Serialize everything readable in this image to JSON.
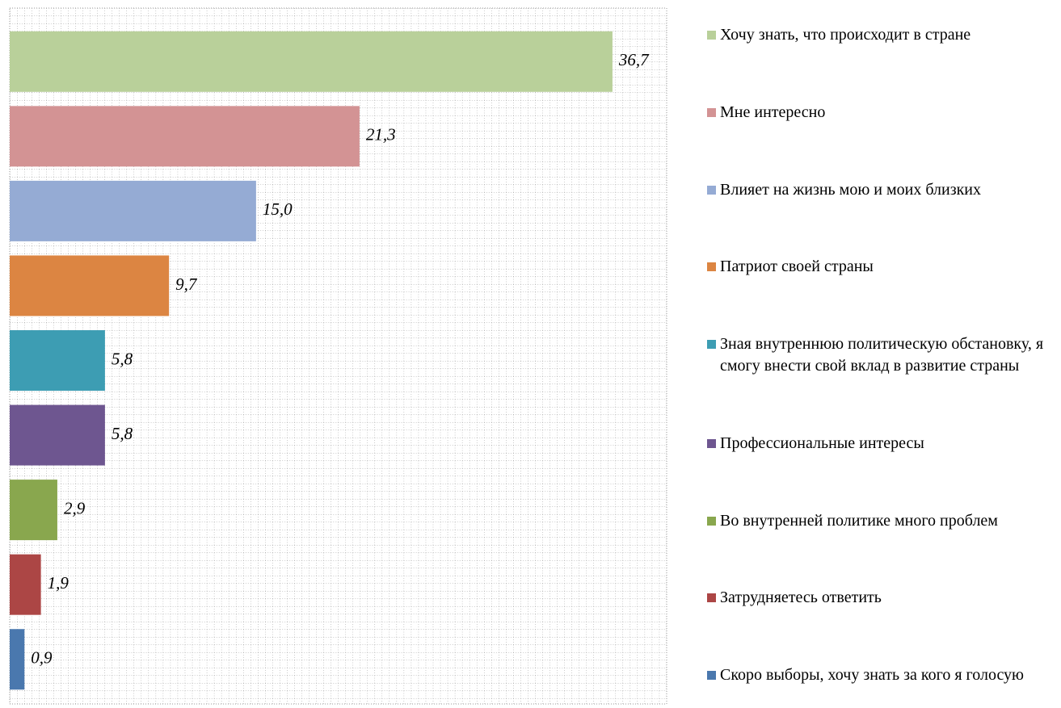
{
  "chart_data": {
    "type": "bar",
    "orientation": "horizontal",
    "categories": [
      "Хочу знать, что происходит в стране",
      "Мне интересно",
      "Влияет на жизнь мою и моих близких",
      "Патриот своей страны",
      "Зная внутреннюю политическую обстановку, я смогу внести свой вклад в развитие страны",
      "Профессиональные интересы",
      "Во внутренней политике много проблем",
      "Затрудняетесь ответить",
      "Скоро выборы, хочу знать за кого я голосую"
    ],
    "values": [
      36.7,
      21.3,
      15.0,
      9.7,
      5.8,
      5.8,
      2.9,
      1.9,
      0.9
    ],
    "value_labels": [
      "36,7",
      "21,3",
      "15,0",
      "9,7",
      "5,8",
      "5,8",
      "2,9",
      "1,9",
      "0,9"
    ],
    "colors": [
      "#b9d09a",
      "#d39394",
      "#95abd4",
      "#dc8542",
      "#3d9db3",
      "#6e5690",
      "#89a74e",
      "#ac4645",
      "#4a78ae"
    ],
    "xlim": [
      0,
      40
    ],
    "grid": true,
    "legend": "right"
  }
}
